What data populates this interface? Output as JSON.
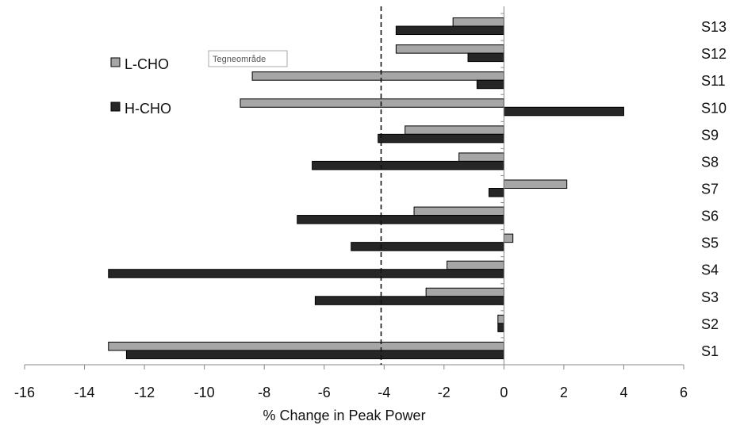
{
  "chart_data": {
    "type": "bar",
    "orientation": "horizontal",
    "categories": [
      "S1",
      "S2",
      "S3",
      "S4",
      "S5",
      "S6",
      "S7",
      "S8",
      "S9",
      "S10",
      "S11",
      "S12",
      "S13"
    ],
    "series": [
      {
        "name": "L-CHO",
        "color": "#a6a6a6",
        "values": [
          -13.2,
          -0.2,
          -2.6,
          -1.9,
          0.3,
          -3.0,
          2.1,
          -1.5,
          -3.3,
          -8.8,
          -8.4,
          -3.6,
          -1.7
        ]
      },
      {
        "name": "H-CHO",
        "color": "#262626",
        "values": [
          -12.6,
          -0.2,
          -6.3,
          -13.2,
          -5.1,
          -6.9,
          -0.5,
          -6.4,
          -4.2,
          4.0,
          -0.9,
          -1.2,
          -3.6
        ]
      }
    ],
    "xlim": [
      -16,
      6
    ],
    "xticks": [
      -16,
      -14,
      -12,
      -10,
      -8,
      -6,
      -4,
      -2,
      0,
      2,
      4,
      6
    ],
    "xlabel": "% Change in Peak Power",
    "ylabel": "",
    "reference_line": {
      "x": -4.1,
      "style": "dashed"
    },
    "annotation": "Tegneområde",
    "legend_position": "top-left",
    "grid": false
  }
}
